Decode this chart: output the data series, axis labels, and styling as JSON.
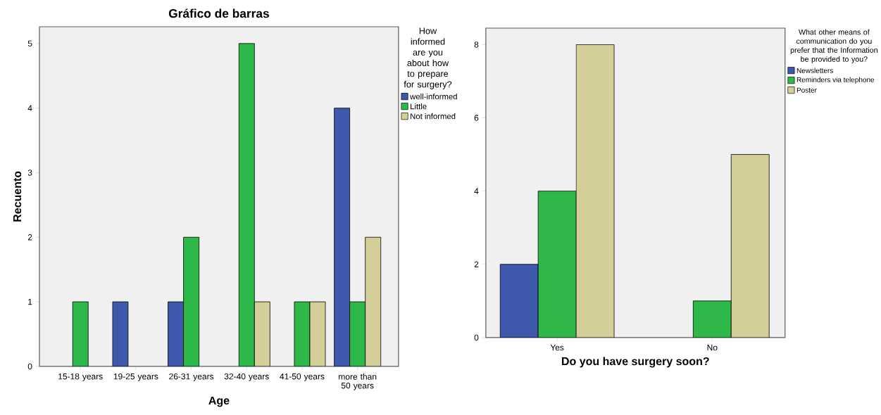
{
  "chart_data": [
    {
      "type": "bar",
      "title": "Gráfico de barras",
      "xlabel": "Age",
      "ylabel": "Recuento",
      "legend_title": "How informed are you about how to prepare for surgery?",
      "categories": [
        "15-18 years",
        "19-25 years",
        "26-31 years",
        "32-40 years",
        "41-50 years",
        "more than 50 years"
      ],
      "series": [
        {
          "name": "well-informed",
          "color": "#3e58ac",
          "values": [
            null,
            1,
            1,
            null,
            null,
            4
          ]
        },
        {
          "name": "Little",
          "color": "#2eb84a",
          "values": [
            1,
            null,
            2,
            5,
            1,
            1
          ]
        },
        {
          "name": "Not informed",
          "color": "#d4cf98",
          "values": [
            null,
            null,
            null,
            1,
            1,
            2
          ]
        }
      ],
      "ylim": [
        0,
        5.26
      ],
      "yticks": [
        0,
        1,
        2,
        3,
        4,
        5
      ],
      "grid": false,
      "legend": "right"
    },
    {
      "type": "bar",
      "xlabel": "Do you have surgery soon?",
      "legend_title": "What other means of communication do you prefer that the Information be provided to you?",
      "categories": [
        "Yes",
        "No"
      ],
      "series": [
        {
          "name": "Newsletters",
          "color": "#3e58ac",
          "values": [
            2,
            null
          ]
        },
        {
          "name": "Reminders via telephone",
          "color": "#2eb84a",
          "values": [
            4,
            1
          ]
        },
        {
          "name": "Poster",
          "color": "#d4cf98",
          "values": [
            8,
            5
          ]
        }
      ],
      "ylim": [
        0,
        8.45
      ],
      "yticks": [
        0,
        2,
        4,
        6,
        8
      ],
      "grid": false,
      "legend": "right"
    }
  ]
}
